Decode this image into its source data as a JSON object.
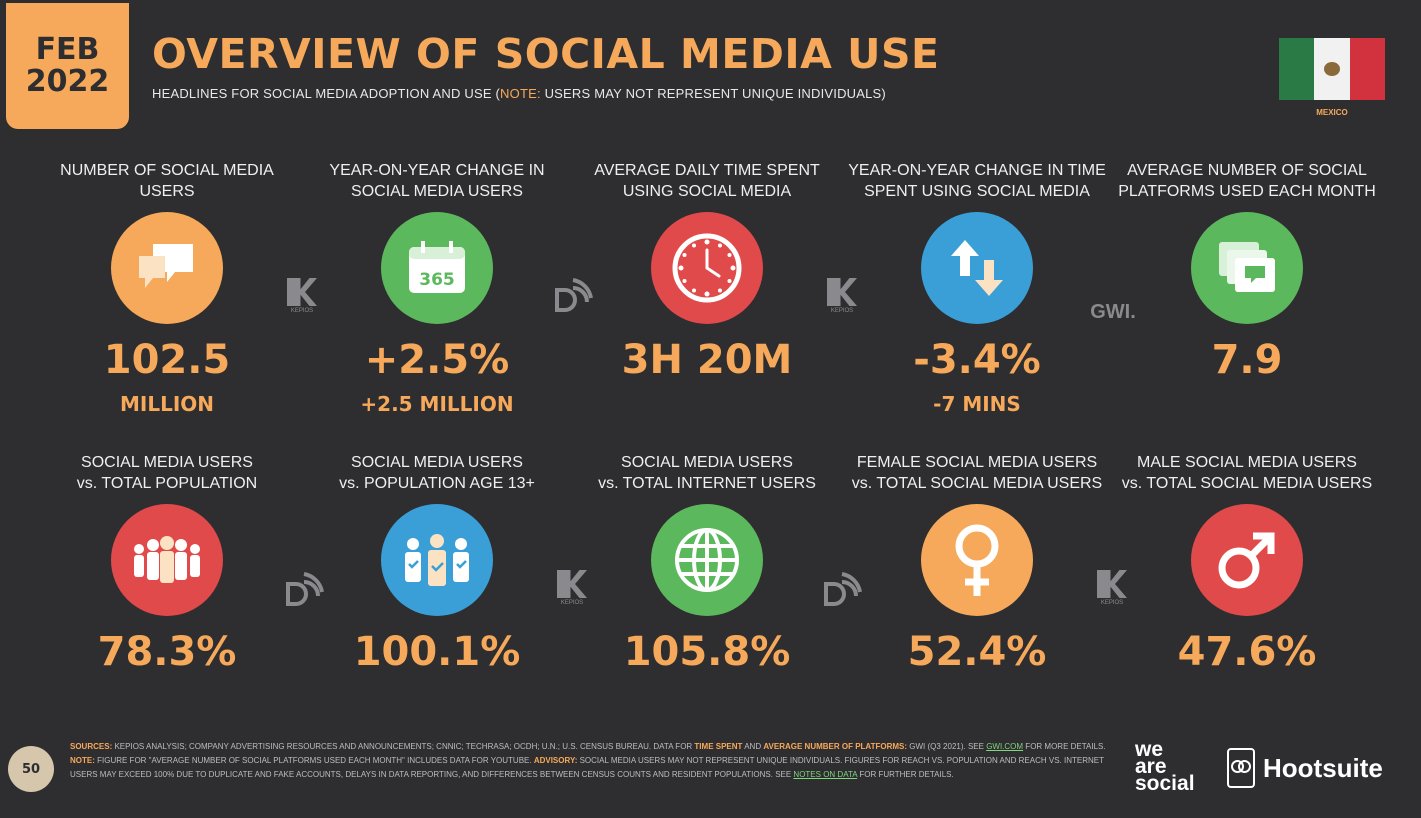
{
  "date": {
    "month": "FEB",
    "year": "2022"
  },
  "title": "OVERVIEW OF SOCIAL MEDIA USE",
  "subtitle": {
    "before": "HEADLINES FOR SOCIAL MEDIA ADOPTION AND USE (",
    "note": "NOTE:",
    "after": " USERS MAY NOT REPRESENT UNIQUE INDIVIDUALS)"
  },
  "country": "MEXICO",
  "row1": [
    {
      "label": "NUMBER OF SOCIAL MEDIA USERS",
      "icon": "speech-bubbles-icon",
      "color": "#f6a95a",
      "value": "102.5",
      "sub": "MILLION"
    },
    {
      "label": "YEAR-ON-YEAR CHANGE IN SOCIAL MEDIA USERS",
      "icon": "calendar-365-icon",
      "color": "#5cb85c",
      "value": "+2.5%",
      "sub": "+2.5 MILLION"
    },
    {
      "label": "AVERAGE DAILY TIME SPENT USING SOCIAL MEDIA",
      "icon": "clock-icon",
      "color": "#e04a4a",
      "value": "3H 20M",
      "sub": ""
    },
    {
      "label": "YEAR-ON-YEAR CHANGE IN TIME SPENT USING SOCIAL MEDIA",
      "icon": "up-down-arrows-icon",
      "color": "#3a9fd6",
      "value": "-3.4%",
      "sub": "-7 MINS"
    },
    {
      "label": "AVERAGE NUMBER OF SOCIAL PLATFORMS USED EACH MONTH",
      "icon": "stacked-windows-icon",
      "color": "#5cb85c",
      "value": "7.9",
      "sub": ""
    }
  ],
  "row2": [
    {
      "label_1": "SOCIAL MEDIA USERS",
      "label_2": "vs. TOTAL POPULATION",
      "icon": "people-group-icon",
      "color": "#e04a4a",
      "value": "78.3%"
    },
    {
      "label_1": "SOCIAL MEDIA USERS",
      "label_2": "vs. POPULATION AGE 13+",
      "icon": "people-checked-icon",
      "color": "#3a9fd6",
      "value": "100.1%"
    },
    {
      "label_1": "SOCIAL MEDIA USERS",
      "label_2": "vs. TOTAL INTERNET USERS",
      "icon": "globe-icon",
      "color": "#5cb85c",
      "value": "105.8%"
    },
    {
      "label_1": "FEMALE SOCIAL MEDIA USERS",
      "label_2": "vs. TOTAL SOCIAL MEDIA USERS",
      "icon": "female-symbol-icon",
      "color": "#f6a95a",
      "value": "52.4%"
    },
    {
      "label_1": "MALE SOCIAL MEDIA USERS",
      "label_2": "vs. TOTAL SOCIAL MEDIA USERS",
      "icon": "male-symbol-icon",
      "color": "#e04a4a",
      "value": "47.6%"
    }
  ],
  "sources_logo": {
    "kepios": "KEPIOS",
    "gwi": "GWI."
  },
  "page_number": "50",
  "footer": {
    "sources_label": "SOURCES:",
    "sources_text": " KEPIOS ANALYSIS; COMPANY ADVERTISING RESOURCES AND ANNOUNCEMENTS; CNNIC; TECHRASA; OCDH; U.N.; U.S. CENSUS BUREAU. DATA FOR ",
    "time_spent": "TIME SPENT",
    "and": " AND ",
    "avg_platforms": "AVERAGE NUMBER OF PLATFORMS:",
    "gwi_text": " GWI (Q3 2021). SEE ",
    "gwi_link": "GWI.COM",
    "more_details": " FOR MORE DETAILS. ",
    "note_label": "NOTE:",
    "note_text": " FIGURE FOR \"AVERAGE NUMBER OF SOCIAL PLATFORMS USED EACH MONTH\" INCLUDES DATA FOR YOUTUBE. ",
    "advisory_label": "ADVISORY:",
    "advisory_text": " SOCIAL MEDIA USERS MAY NOT REPRESENT UNIQUE INDIVIDUALS. FIGURES FOR REACH vs. POPULATION AND REACH vs. INTERNET USERS MAY EXCEED 100% DUE TO DUPLICATE AND FAKE ACCOUNTS, DELAYS IN DATA REPORTING, AND DIFFERENCES BETWEEN CENSUS COUNTS AND RESIDENT POPULATIONS. SEE ",
    "notes_link": "NOTES ON DATA",
    "end_text": " FOR FURTHER DETAILS."
  },
  "brand": {
    "we": "we",
    "are": "are",
    "social": "social",
    "hootsuite": "Hootsuite"
  }
}
